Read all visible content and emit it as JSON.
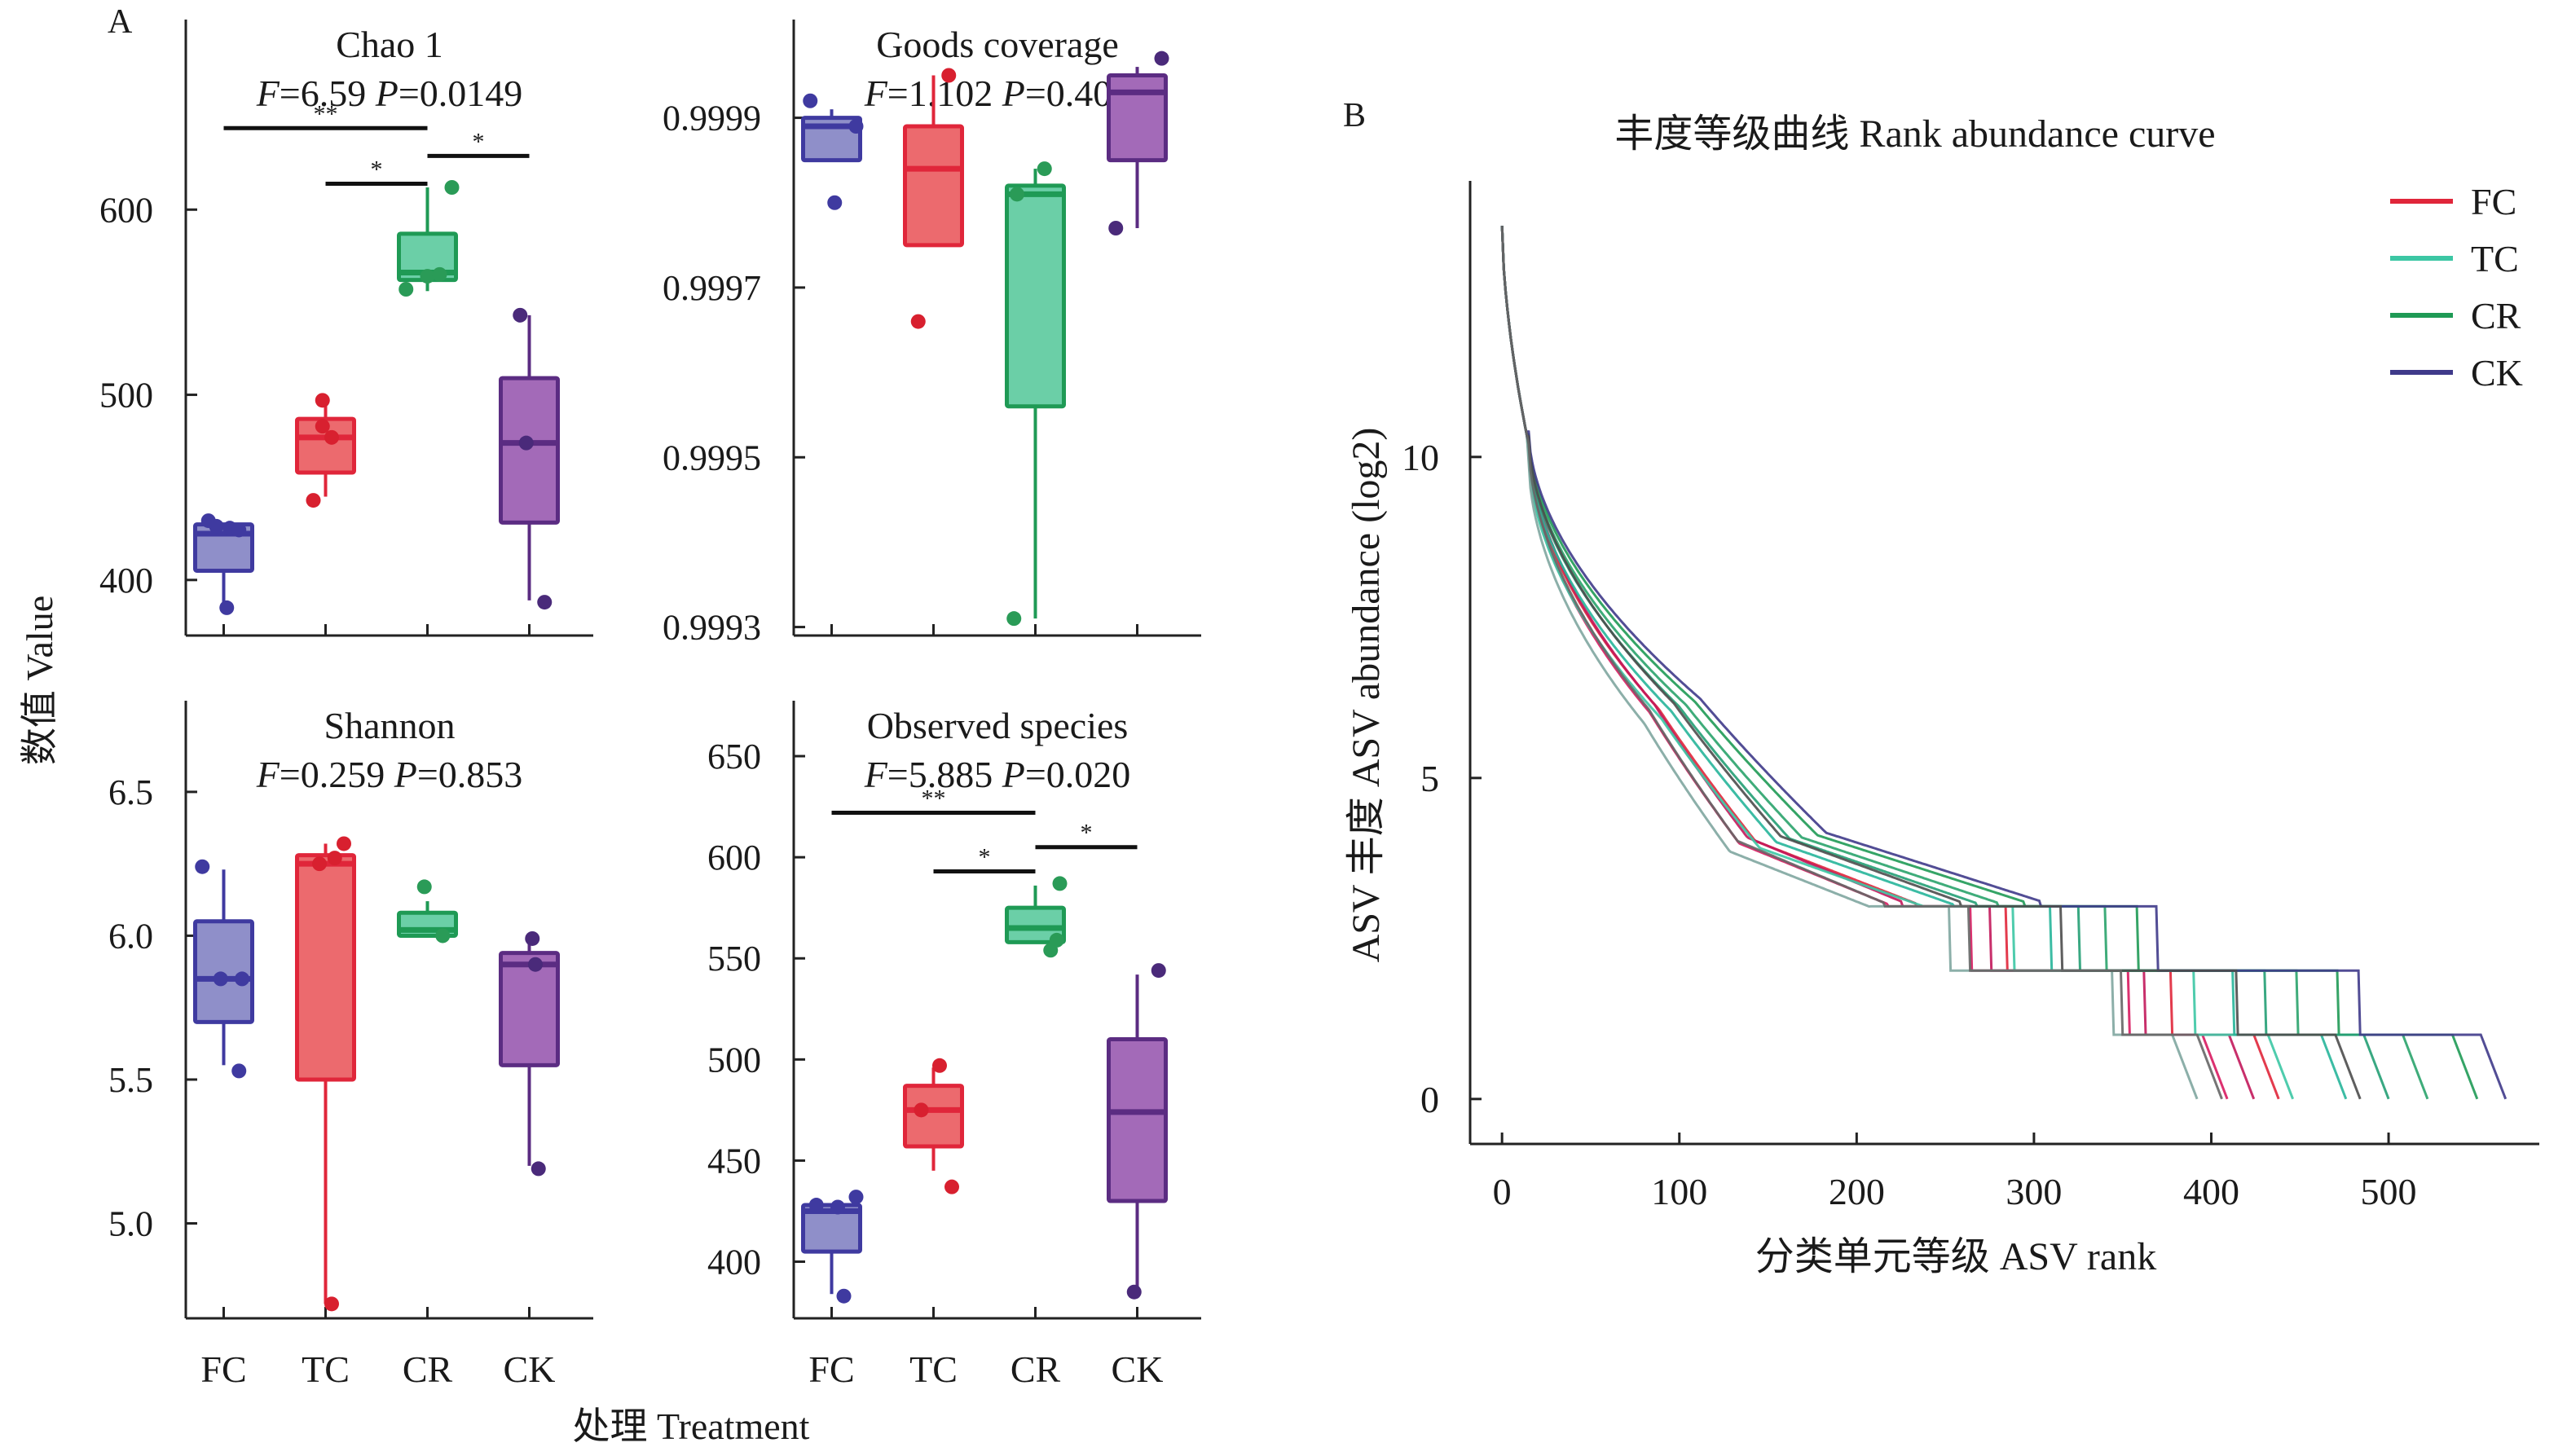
{
  "panel_labels": {
    "a": "A",
    "b": "B"
  },
  "shared_axes": {
    "y_label": "数值 Value",
    "x_label": "处理 Treatment",
    "categories": [
      "FC",
      "TC",
      "CR",
      "CK"
    ]
  },
  "colors": {
    "FC": {
      "fill": "#8f8fc9",
      "stroke": "#3f3aa0",
      "dot": "#3f3aa0"
    },
    "TC": {
      "fill": "#ec6a6e",
      "stroke": "#e0263a",
      "dot": "#d8202f"
    },
    "CR": {
      "fill": "#6bcfa7",
      "stroke": "#1f9a55",
      "dot": "#2a9b57"
    },
    "CK": {
      "fill": "#a36ab8",
      "stroke": "#5b2c82",
      "dot": "#4a2a7a"
    }
  },
  "chart_data": [
    {
      "id": "chao1",
      "type": "box",
      "title": "Chao 1",
      "subtitle": {
        "f": "6.59",
        "p": "0.0149"
      },
      "ylim": [
        370,
        700
      ],
      "yticks": [
        400,
        500,
        600
      ],
      "ytick_labels": [
        "400",
        "500",
        "600"
      ],
      "boxes": [
        {
          "cat": "FC",
          "q1": 405,
          "median": 425,
          "q3": 430,
          "wlo": 386,
          "whi": 430,
          "points": [
            [
              -0.25,
              432
            ],
            [
              -0.12,
              429
            ],
            [
              0.1,
              428
            ],
            [
              0.25,
              427
            ],
            [
              0.05,
              385
            ]
          ]
        },
        {
          "cat": "TC",
          "q1": 458,
          "median": 477,
          "q3": 487,
          "wlo": 445,
          "whi": 497,
          "points": [
            [
              -0.2,
              443
            ],
            [
              -0.05,
              483
            ],
            [
              0.1,
              477
            ],
            [
              -0.05,
              497
            ]
          ]
        },
        {
          "cat": "CR",
          "q1": 562,
          "median": 566,
          "q3": 587,
          "wlo": 556,
          "whi": 612,
          "points": [
            [
              -0.35,
              557
            ],
            [
              0.0,
              564
            ],
            [
              0.4,
              612
            ],
            [
              0.2,
              565
            ]
          ]
        },
        {
          "cat": "CK",
          "q1": 431,
          "median": 474,
          "q3": 509,
          "wlo": 389,
          "whi": 543,
          "points": [
            [
              -0.15,
              543
            ],
            [
              -0.05,
              474
            ],
            [
              0.25,
              388
            ]
          ]
        }
      ],
      "significance": [
        {
          "from": "FC",
          "to": "CR",
          "level": 644,
          "label": "**"
        },
        {
          "from": "TC",
          "to": "CR",
          "level": 614,
          "label": "*"
        },
        {
          "from": "CR",
          "to": "CK",
          "level": 629,
          "label": "*"
        }
      ]
    },
    {
      "id": "goods",
      "type": "box",
      "title": "Goods coverage",
      "subtitle": {
        "f": "1.102",
        "p": "0.403"
      },
      "ylim": [
        0.99929,
        1.00001
      ],
      "yticks": [
        0.9993,
        0.9995,
        0.9997,
        0.9999
      ],
      "ytick_labels": [
        "0.9993",
        "0.9995",
        "0.9997",
        "0.9999"
      ],
      "boxes": [
        {
          "cat": "FC",
          "q1": 0.99985,
          "median": 0.99989,
          "q3": 0.9999,
          "wlo": 0.99985,
          "whi": 0.99991,
          "points": [
            [
              -0.35,
              0.99992
            ],
            [
              0.4,
              0.99989
            ],
            [
              0.05,
              0.9998
            ]
          ]
        },
        {
          "cat": "TC",
          "q1": 0.99975,
          "median": 0.99984,
          "q3": 0.99989,
          "wlo": 0.99975,
          "whi": 0.99995,
          "points": [
            [
              0.25,
              0.99995
            ],
            [
              -0.25,
              0.99966
            ]
          ]
        },
        {
          "cat": "CR",
          "q1": 0.99956,
          "median": 0.99981,
          "q3": 0.99982,
          "wlo": 0.99931,
          "whi": 0.99984,
          "points": [
            [
              -0.35,
              0.99931
            ],
            [
              -0.3,
              0.99981
            ],
            [
              0.15,
              0.99984
            ]
          ]
        },
        {
          "cat": "CK",
          "q1": 0.99985,
          "median": 0.99993,
          "q3": 0.99995,
          "wlo": 0.99977,
          "whi": 0.99996,
          "points": [
            [
              0.4,
              0.99997
            ],
            [
              -0.35,
              0.99977
            ]
          ]
        }
      ],
      "significance": []
    },
    {
      "id": "shannon",
      "type": "box",
      "title": "Shannon",
      "subtitle": {
        "f": "0.259",
        "p": "0.853"
      },
      "ylim": [
        4.67,
        6.8
      ],
      "yticks": [
        5.0,
        5.5,
        6.0,
        6.5
      ],
      "ytick_labels": [
        "5.0",
        "5.5",
        "6.0",
        "6.5"
      ],
      "boxes": [
        {
          "cat": "FC",
          "q1": 5.7,
          "median": 5.85,
          "q3": 6.05,
          "wlo": 5.55,
          "whi": 6.23,
          "points": [
            [
              -0.35,
              6.24
            ],
            [
              0.25,
              5.53
            ],
            [
              -0.05,
              5.85
            ],
            [
              0.3,
              5.85
            ]
          ]
        },
        {
          "cat": "TC",
          "q1": 5.5,
          "median": 6.25,
          "q3": 6.28,
          "wlo": 4.72,
          "whi": 6.32,
          "points": [
            [
              0.3,
              6.32
            ],
            [
              -0.1,
              6.25
            ],
            [
              0.15,
              6.27
            ],
            [
              0.1,
              4.72
            ]
          ]
        },
        {
          "cat": "CR",
          "q1": 6.0,
          "median": 6.02,
          "q3": 6.08,
          "wlo": 6.0,
          "whi": 6.12,
          "points": [
            [
              -0.05,
              6.17
            ],
            [
              0.25,
              6.0
            ]
          ]
        },
        {
          "cat": "CK",
          "q1": 5.55,
          "median": 5.9,
          "q3": 5.94,
          "wlo": 5.2,
          "whi": 5.99,
          "points": [
            [
              0.05,
              5.99
            ],
            [
              0.1,
              5.9
            ],
            [
              0.15,
              5.19
            ]
          ]
        }
      ],
      "significance": []
    },
    {
      "id": "observed",
      "type": "box",
      "title": "Observed species",
      "subtitle": {
        "f": "5.885",
        "p": "0.020"
      },
      "ylim": [
        372,
        675
      ],
      "yticks": [
        400,
        450,
        500,
        550,
        600,
        650
      ],
      "ytick_labels": [
        "400",
        "450",
        "500",
        "550",
        "600",
        "650"
      ],
      "boxes": [
        {
          "cat": "FC",
          "q1": 405,
          "median": 425,
          "q3": 428,
          "wlo": 384,
          "whi": 428,
          "points": [
            [
              -0.25,
              428
            ],
            [
              0.1,
              427
            ],
            [
              0.4,
              432
            ],
            [
              0.2,
              383
            ]
          ]
        },
        {
          "cat": "TC",
          "q1": 457,
          "median": 475,
          "q3": 487,
          "wlo": 445,
          "whi": 496,
          "points": [
            [
              0.1,
              497
            ],
            [
              -0.2,
              475
            ],
            [
              0.3,
              437
            ]
          ]
        },
        {
          "cat": "CR",
          "q1": 558,
          "median": 565,
          "q3": 575,
          "wlo": 558,
          "whi": 586,
          "points": [
            [
              0.4,
              587
            ],
            [
              0.25,
              554
            ],
            [
              0.35,
              559
            ]
          ]
        },
        {
          "cat": "CK",
          "q1": 430,
          "median": 474,
          "q3": 510,
          "wlo": 385,
          "whi": 542,
          "points": [
            [
              0.35,
              544
            ],
            [
              -0.05,
              385
            ]
          ]
        }
      ],
      "significance": [
        {
          "from": "FC",
          "to": "CR",
          "level": 622,
          "label": "**"
        },
        {
          "from": "TC",
          "to": "CR",
          "level": 593,
          "label": "*"
        },
        {
          "from": "CR",
          "to": "CK",
          "level": 605,
          "label": "*"
        }
      ]
    },
    {
      "id": "rank_abundance",
      "type": "line",
      "title": "丰度等级曲线 Rank abundance curve",
      "xlabel": "分类单元等级 ASV rank",
      "ylabel": "ASV 丰度 ASV abundance (log2)",
      "xlim": [
        -18,
        585
      ],
      "ylim": [
        -0.7,
        14.3
      ],
      "xticks": [
        0,
        100,
        200,
        300,
        400,
        500
      ],
      "xtick_labels": [
        "0",
        "100",
        "200",
        "300",
        "400",
        "500"
      ],
      "yticks": [
        0,
        5,
        10
      ],
      "ytick_labels": [
        "0",
        "5",
        "10"
      ],
      "legend_position": "top-right",
      "legend": [
        {
          "label": "FC",
          "color": "#e0263a"
        },
        {
          "label": "TC",
          "color": "#3cc7a4"
        },
        {
          "label": "CR",
          "color": "#1f9a55"
        },
        {
          "label": "CK",
          "color": "#3f3a8a"
        }
      ],
      "series": [
        {
          "group": "FC",
          "color": "#e0263a",
          "max_rank": 424,
          "curve_offset": 0.0
        },
        {
          "group": "FC",
          "color": "#c2185b",
          "max_rank": 410,
          "curve_offset": 0.15
        },
        {
          "group": "FC",
          "color": "#d81b60",
          "max_rank": 395,
          "curve_offset": -0.1
        },
        {
          "group": "TC",
          "color": "#3cc7a4",
          "max_rank": 432,
          "curve_offset": -0.3
        },
        {
          "group": "TC",
          "color": "#27b59a",
          "max_rank": 462,
          "curve_offset": -0.05
        },
        {
          "group": "TC",
          "color": "#7fa6a0",
          "max_rank": 378,
          "curve_offset": -0.45
        },
        {
          "group": "CR",
          "color": "#1f9a55",
          "max_rank": 536,
          "curve_offset": 0.25
        },
        {
          "group": "CR",
          "color": "#2aa36b",
          "max_rank": 508,
          "curve_offset": 0.15
        },
        {
          "group": "CR",
          "color": "#239e74",
          "max_rank": 486,
          "curve_offset": 0.1
        },
        {
          "group": "CK",
          "color": "#3f3a8a",
          "max_rank": 552,
          "curve_offset": 0.35
        },
        {
          "group": "CK",
          "color": "#4d4d4d",
          "max_rank": 470,
          "curve_offset": 0.2
        },
        {
          "group": "CK",
          "color": "#666666",
          "max_rank": 392,
          "curve_offset": 0.0
        }
      ]
    }
  ]
}
